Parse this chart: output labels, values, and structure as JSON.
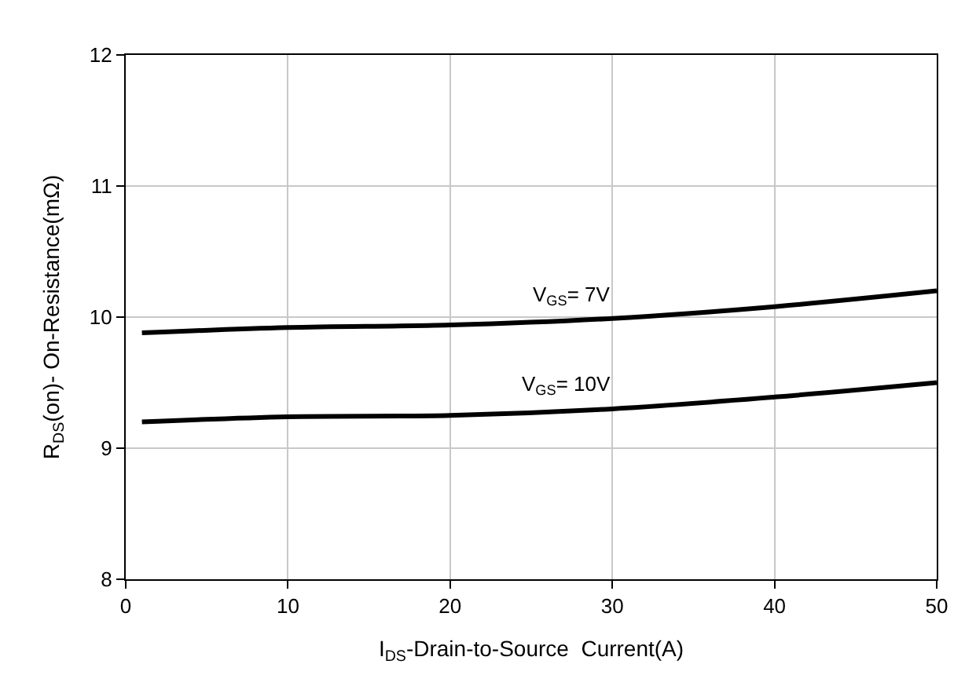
{
  "chart_data": {
    "type": "line",
    "xlabel": "I$_{DS}$-Drain-to-Source  Current(A)",
    "ylabel": "R$_{DS}$(on)- On-Resistance(mΩ)",
    "x": [
      1,
      10,
      20,
      30,
      40,
      50
    ],
    "series": [
      {
        "name": "V$_{GS}$= 7V",
        "color": "#000000",
        "values": [
          9.88,
          9.92,
          9.94,
          9.99,
          10.08,
          10.2
        ]
      },
      {
        "name": "V$_{GS}$= 10V",
        "color": "#000000",
        "values": [
          9.2,
          9.24,
          9.25,
          9.3,
          9.39,
          9.5
        ]
      }
    ],
    "xlim": [
      0,
      50
    ],
    "xticks": [
      0,
      10,
      20,
      30,
      40,
      50
    ],
    "ylim": [
      8,
      12
    ],
    "yticks": [
      8,
      9,
      10,
      11,
      12
    ],
    "grid": true,
    "legend": false,
    "marker": "none",
    "line_style": "solid"
  }
}
